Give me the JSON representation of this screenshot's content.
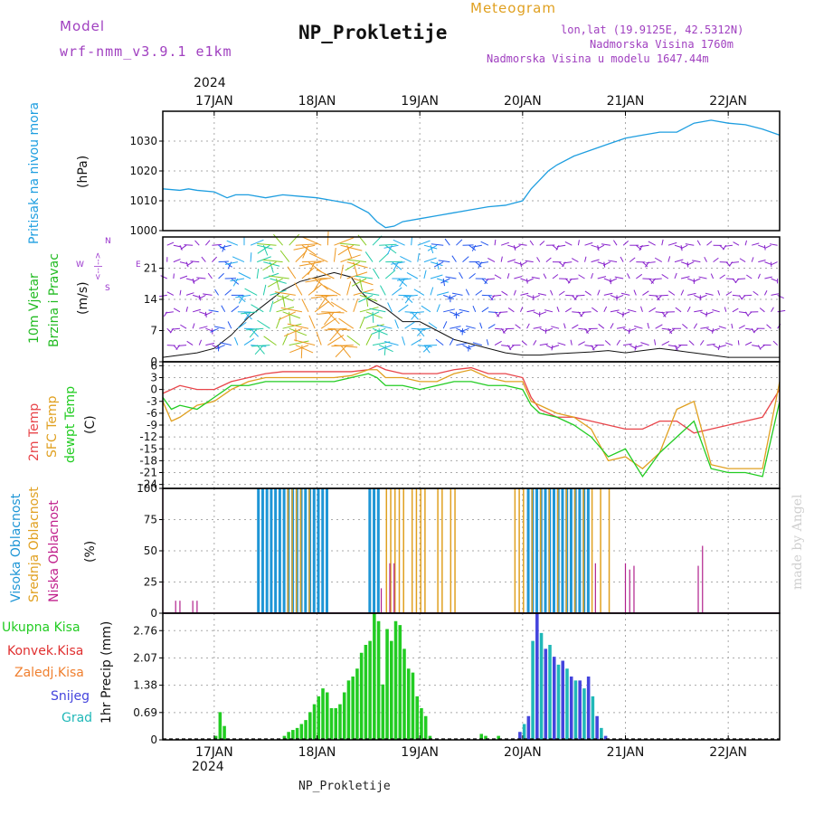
{
  "header": {
    "model_label": "Model",
    "model_name": "wrf-nmm_v3.9.1 e1km",
    "title": "NP_Prokletije",
    "meteogram": "Meteogram",
    "lonlat": "lon,lat (19.9125E, 42.5312N)",
    "altitude": "Nadmorska Visina 1760m",
    "model_altitude": "Nadmorska Visina u modelu 1647.44m",
    "year_top": "2024",
    "year_bottom": "2024",
    "footer": "NP_Prokletije",
    "watermark": "made by Angel"
  },
  "colors": {
    "pressure": "#1e9ee0",
    "temp2m": "#e8454a",
    "sfc": "#e0a020",
    "dewpt": "#22cc22",
    "high_cloud": "#1e96d6",
    "mid_cloud": "#e0a020",
    "low_cloud": "#b0208c",
    "total_precip": "#22cc22",
    "conv_precip": "#e03030",
    "freezing": "#f08030",
    "snow": "#4444dd",
    "grad": "#20b8b8",
    "wind_label": "#22bb22",
    "wind_mark": "#9933cc"
  },
  "panel_labels": {
    "pressure": [
      "Pritisak na nivou mora",
      "(hPa)"
    ],
    "wind": [
      "10m Vjetar",
      "Brzina i Pravac",
      "(m/s)"
    ],
    "wind_compass": [
      "W",
      "<--|-->",
      "E",
      "S",
      "N"
    ],
    "temp": [
      "2m Temp",
      "SFC Temp",
      "dewpt Temp",
      "(C)"
    ],
    "cloud": [
      "Visoka Oblacnost",
      "Srednja Oblacnost",
      "Niska Oblacnost",
      "(%)"
    ],
    "precip_units": "1hr Precip (mm)",
    "precip_legend": [
      "Ukupna Kisa",
      "Konvek.Kisa",
      "Zaledj.Kisa",
      "Snijeg",
      "Grad"
    ]
  },
  "chart_data": {
    "type": "line",
    "x_labels": [
      "17JAN",
      "18JAN",
      "19JAN",
      "20JAN",
      "21JAN",
      "22JAN"
    ],
    "x_hours": [
      0,
      24,
      48,
      72,
      96,
      120
    ],
    "x_range": [
      -12,
      132
    ],
    "pressure": {
      "ylabel": "(hPa)",
      "ylim": [
        1000,
        1040
      ],
      "ticks": [
        1000,
        1010,
        1020,
        1030
      ],
      "points": [
        [
          -12,
          1014
        ],
        [
          -8,
          1013.5
        ],
        [
          -6,
          1014
        ],
        [
          -4,
          1013.5
        ],
        [
          0,
          1013
        ],
        [
          3,
          1011
        ],
        [
          5,
          1012
        ],
        [
          8,
          1012
        ],
        [
          12,
          1011
        ],
        [
          16,
          1012
        ],
        [
          20,
          1011.5
        ],
        [
          24,
          1011
        ],
        [
          28,
          1010
        ],
        [
          32,
          1009
        ],
        [
          36,
          1006
        ],
        [
          38,
          1003
        ],
        [
          40,
          1001
        ],
        [
          42,
          1001.5
        ],
        [
          44,
          1003
        ],
        [
          48,
          1004
        ],
        [
          52,
          1005
        ],
        [
          56,
          1006
        ],
        [
          60,
          1007
        ],
        [
          64,
          1008
        ],
        [
          68,
          1008.5
        ],
        [
          72,
          1010
        ],
        [
          74,
          1014
        ],
        [
          76,
          1017
        ],
        [
          78,
          1020
        ],
        [
          80,
          1022
        ],
        [
          84,
          1025
        ],
        [
          88,
          1027
        ],
        [
          92,
          1029
        ],
        [
          96,
          1031
        ],
        [
          100,
          1032
        ],
        [
          104,
          1033
        ],
        [
          108,
          1033
        ],
        [
          112,
          1036
        ],
        [
          116,
          1037
        ],
        [
          120,
          1036
        ],
        [
          124,
          1035.5
        ],
        [
          128,
          1034
        ],
        [
          132,
          1032
        ]
      ]
    },
    "wind": {
      "ylabel": "(m/s)",
      "ylim": [
        0,
        28
      ],
      "ticks": [
        0,
        7,
        14,
        21
      ],
      "speed_points": [
        [
          -12,
          1
        ],
        [
          -4,
          2
        ],
        [
          0,
          3
        ],
        [
          4,
          6
        ],
        [
          8,
          10
        ],
        [
          12,
          13
        ],
        [
          16,
          16
        ],
        [
          20,
          18
        ],
        [
          24,
          19
        ],
        [
          28,
          20
        ],
        [
          32,
          19
        ],
        [
          34,
          16
        ],
        [
          36,
          14
        ],
        [
          40,
          12
        ],
        [
          44,
          9
        ],
        [
          48,
          9
        ],
        [
          52,
          7
        ],
        [
          56,
          5
        ],
        [
          60,
          4
        ],
        [
          64,
          3
        ],
        [
          68,
          2
        ],
        [
          72,
          1.5
        ],
        [
          76,
          1.5
        ],
        [
          80,
          1.8
        ],
        [
          84,
          2
        ],
        [
          88,
          2.2
        ],
        [
          92,
          2.5
        ],
        [
          96,
          2
        ],
        [
          100,
          2.5
        ],
        [
          104,
          3
        ],
        [
          108,
          2.5
        ],
        [
          112,
          2
        ],
        [
          116,
          1.5
        ],
        [
          120,
          1
        ],
        [
          124,
          1
        ],
        [
          128,
          1
        ],
        [
          132,
          1
        ]
      ]
    },
    "temperature": {
      "ylabel": "(C)",
      "ylim": [
        -25,
        7
      ],
      "ticks": [
        6,
        3,
        0,
        -3,
        -6,
        -9,
        -12,
        -15,
        -18,
        -21,
        -24
      ],
      "series": [
        {
          "name": "2m Temp",
          "points": [
            [
              -12,
              -1
            ],
            [
              -8,
              1
            ],
            [
              -4,
              0
            ],
            [
              0,
              0
            ],
            [
              4,
              2
            ],
            [
              8,
              3
            ],
            [
              12,
              4
            ],
            [
              16,
              4.5
            ],
            [
              20,
              4.5
            ],
            [
              24,
              4.5
            ],
            [
              28,
              4.5
            ],
            [
              32,
              4.5
            ],
            [
              36,
              5
            ],
            [
              38,
              6
            ],
            [
              40,
              5
            ],
            [
              44,
              4
            ],
            [
              48,
              4
            ],
            [
              52,
              4
            ],
            [
              56,
              5
            ],
            [
              60,
              5.5
            ],
            [
              64,
              4
            ],
            [
              68,
              4
            ],
            [
              72,
              3
            ],
            [
              74,
              -2
            ],
            [
              76,
              -5
            ],
            [
              80,
              -7
            ],
            [
              84,
              -7
            ],
            [
              88,
              -8
            ],
            [
              92,
              -9
            ],
            [
              96,
              -10
            ],
            [
              100,
              -10
            ],
            [
              104,
              -8
            ],
            [
              108,
              -8
            ],
            [
              112,
              -11
            ],
            [
              116,
              -10
            ],
            [
              120,
              -9
            ],
            [
              124,
              -8
            ],
            [
              128,
              -7
            ],
            [
              132,
              0
            ]
          ]
        },
        {
          "name": "SFC Temp",
          "points": [
            [
              -12,
              -3
            ],
            [
              -10,
              -8
            ],
            [
              -8,
              -7
            ],
            [
              -4,
              -4
            ],
            [
              0,
              -3
            ],
            [
              4,
              0
            ],
            [
              8,
              2
            ],
            [
              12,
              3
            ],
            [
              16,
              3
            ],
            [
              20,
              3
            ],
            [
              24,
              3
            ],
            [
              28,
              3
            ],
            [
              32,
              3.5
            ],
            [
              36,
              5
            ],
            [
              38,
              5
            ],
            [
              40,
              3
            ],
            [
              44,
              3
            ],
            [
              48,
              2
            ],
            [
              52,
              2
            ],
            [
              56,
              4
            ],
            [
              60,
              5
            ],
            [
              64,
              3
            ],
            [
              68,
              2
            ],
            [
              72,
              2
            ],
            [
              74,
              -3
            ],
            [
              76,
              -4
            ],
            [
              80,
              -6
            ],
            [
              84,
              -7
            ],
            [
              88,
              -10
            ],
            [
              92,
              -18
            ],
            [
              96,
              -17
            ],
            [
              100,
              -20
            ],
            [
              104,
              -16
            ],
            [
              108,
              -5
            ],
            [
              112,
              -3
            ],
            [
              116,
              -19
            ],
            [
              120,
              -20
            ],
            [
              124,
              -20
            ],
            [
              128,
              -20
            ],
            [
              132,
              2
            ]
          ]
        },
        {
          "name": "dewpt Temp",
          "points": [
            [
              -12,
              -2
            ],
            [
              -10,
              -5
            ],
            [
              -8,
              -4
            ],
            [
              -4,
              -5
            ],
            [
              0,
              -2
            ],
            [
              4,
              1
            ],
            [
              8,
              1
            ],
            [
              12,
              2
            ],
            [
              16,
              2
            ],
            [
              20,
              2
            ],
            [
              24,
              2
            ],
            [
              28,
              2
            ],
            [
              32,
              3
            ],
            [
              36,
              4
            ],
            [
              38,
              3
            ],
            [
              40,
              1
            ],
            [
              44,
              1
            ],
            [
              48,
              0
            ],
            [
              52,
              1
            ],
            [
              56,
              2
            ],
            [
              60,
              2
            ],
            [
              64,
              1
            ],
            [
              68,
              1
            ],
            [
              72,
              0
            ],
            [
              74,
              -4
            ],
            [
              76,
              -6
            ],
            [
              80,
              -7
            ],
            [
              84,
              -9
            ],
            [
              88,
              -12
            ],
            [
              92,
              -17
            ],
            [
              96,
              -15
            ],
            [
              100,
              -22
            ],
            [
              104,
              -16
            ],
            [
              108,
              -12
            ],
            [
              112,
              -8
            ],
            [
              116,
              -20
            ],
            [
              120,
              -21
            ],
            [
              124,
              -21
            ],
            [
              128,
              -22
            ],
            [
              132,
              -3
            ]
          ]
        }
      ]
    },
    "cloud": {
      "ylabel": "(%)",
      "ylim": [
        0,
        100
      ],
      "ticks": [
        0,
        25,
        50,
        75,
        100
      ],
      "high_hours": [
        10,
        11,
        12,
        13,
        14,
        15,
        16,
        17,
        18,
        19,
        20,
        21,
        22,
        23,
        24,
        25,
        26,
        36,
        37,
        38,
        73,
        74,
        75,
        76,
        77,
        78,
        79,
        80,
        81,
        82,
        83,
        84,
        85,
        86,
        87
      ],
      "mid_hours": [
        17,
        18,
        19,
        20,
        22,
        40,
        41,
        42,
        43,
        44,
        46,
        47,
        48,
        49,
        52,
        53,
        55,
        56,
        70,
        71,
        72,
        74,
        76,
        78,
        80,
        82,
        84,
        86,
        88,
        90,
        92
      ],
      "low_points": [
        [
          -12,
          100
        ],
        [
          -9,
          10
        ],
        [
          -8,
          10
        ],
        [
          -5,
          10
        ],
        [
          -4,
          10
        ],
        [
          39,
          20
        ],
        [
          41,
          40
        ],
        [
          42,
          40
        ],
        [
          89,
          40
        ],
        [
          96,
          40
        ],
        [
          97,
          35
        ],
        [
          98,
          38
        ],
        [
          113,
          38
        ],
        [
          114,
          54
        ]
      ]
    },
    "precip": {
      "ylabel": "1hr Precip (mm)",
      "ylim": [
        0,
        3.2
      ],
      "ticks": [
        0,
        0.69,
        1.38,
        2.07,
        2.76
      ],
      "total": [
        [
          0,
          0.1
        ],
        [
          1,
          0.7
        ],
        [
          2,
          0.35
        ],
        [
          16,
          0.1
        ],
        [
          17,
          0.2
        ],
        [
          18,
          0.25
        ],
        [
          19,
          0.3
        ],
        [
          20,
          0.4
        ],
        [
          21,
          0.5
        ],
        [
          22,
          0.7
        ],
        [
          23,
          0.9
        ],
        [
          24,
          1.1
        ],
        [
          25,
          1.3
        ],
        [
          26,
          1.2
        ],
        [
          27,
          0.8
        ],
        [
          28,
          0.8
        ],
        [
          29,
          0.9
        ],
        [
          30,
          1.2
        ],
        [
          31,
          1.5
        ],
        [
          32,
          1.6
        ],
        [
          33,
          1.8
        ],
        [
          34,
          2.2
        ],
        [
          35,
          2.4
        ],
        [
          36,
          2.5
        ],
        [
          37,
          3.2
        ],
        [
          38,
          3.0
        ],
        [
          39,
          1.4
        ],
        [
          40,
          2.8
        ],
        [
          41,
          2.5
        ],
        [
          42,
          3.0
        ],
        [
          43,
          2.9
        ],
        [
          44,
          2.3
        ],
        [
          45,
          1.8
        ],
        [
          46,
          1.7
        ],
        [
          47,
          1.1
        ],
        [
          48,
          0.8
        ],
        [
          49,
          0.6
        ],
        [
          50,
          0.1
        ],
        [
          62,
          0.15
        ],
        [
          63,
          0.1
        ],
        [
          66,
          0.1
        ]
      ],
      "snow": [
        [
          71,
          0.2
        ],
        [
          72,
          0.4
        ],
        [
          73,
          0.6
        ],
        [
          74,
          2.5
        ],
        [
          75,
          3.2
        ],
        [
          76,
          2.7
        ],
        [
          77,
          2.3
        ],
        [
          78,
          2.4
        ],
        [
          79,
          2.1
        ],
        [
          80,
          1.9
        ],
        [
          81,
          2.0
        ],
        [
          82,
          1.8
        ],
        [
          83,
          1.6
        ],
        [
          84,
          1.5
        ],
        [
          85,
          1.5
        ],
        [
          86,
          1.3
        ],
        [
          87,
          1.6
        ],
        [
          88,
          1.1
        ],
        [
          89,
          0.6
        ],
        [
          90,
          0.3
        ],
        [
          91,
          0.1
        ]
      ]
    }
  }
}
